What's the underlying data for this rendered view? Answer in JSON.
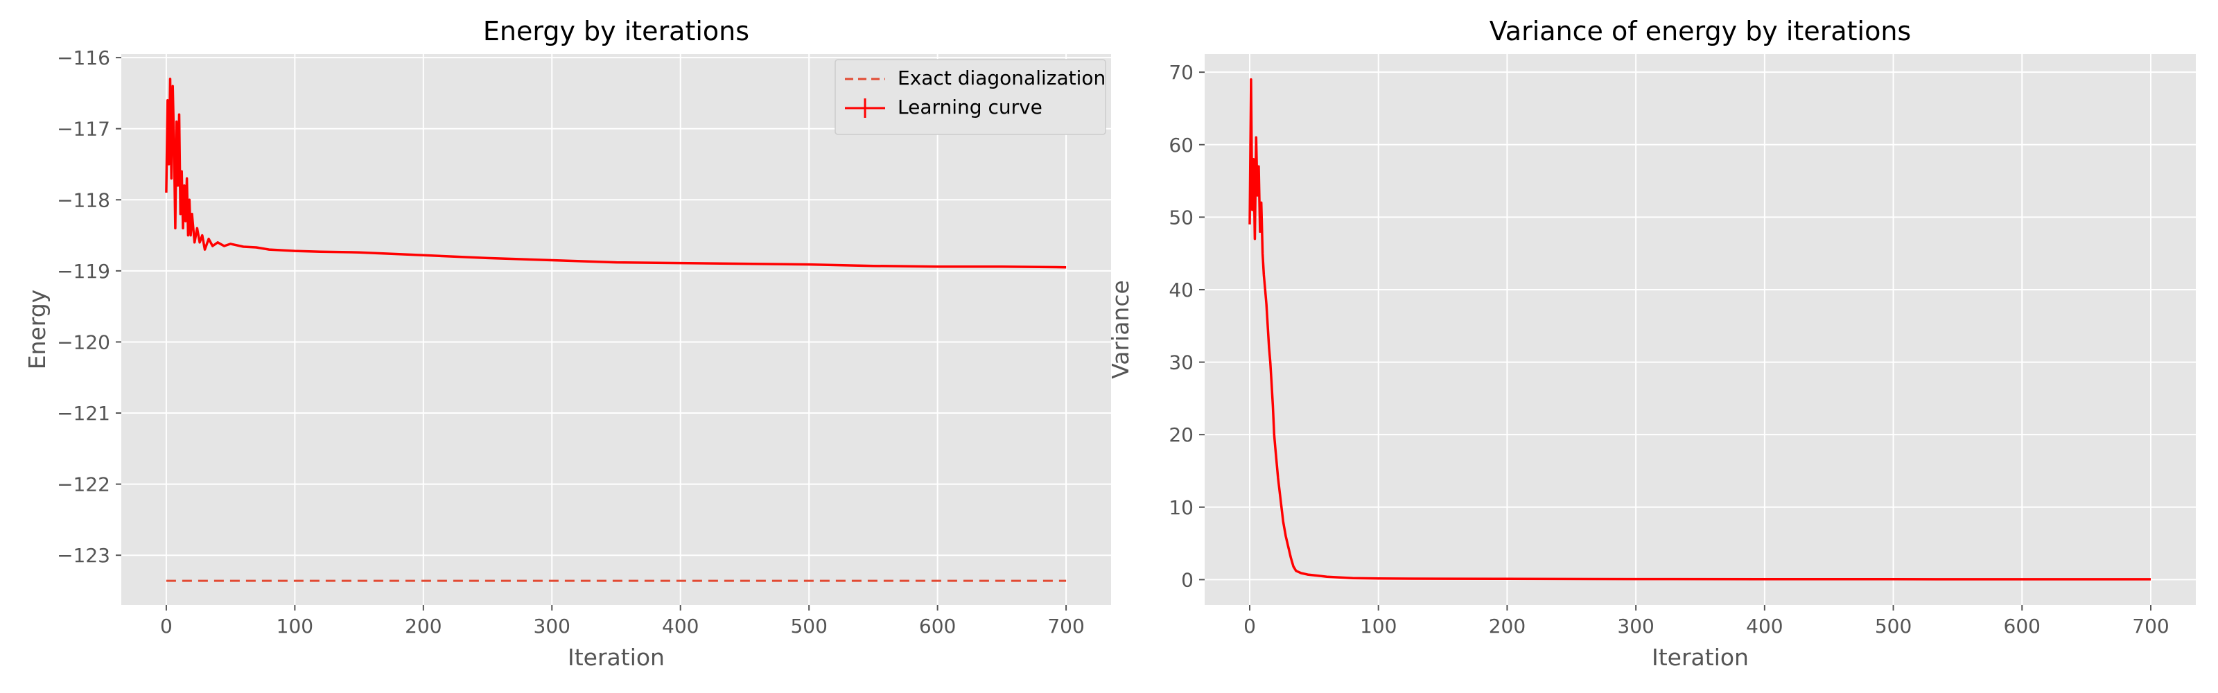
{
  "chart_data": [
    {
      "type": "line",
      "title": "Energy by iterations",
      "xlabel": "Iteration",
      "ylabel": "Energy",
      "xlim": [
        -35,
        735
      ],
      "ylim": [
        -123.7,
        -115.95
      ],
      "xticks": [
        0,
        100,
        200,
        300,
        400,
        500,
        600,
        700
      ],
      "yticks": [
        -116,
        -117,
        -118,
        -119,
        -120,
        -121,
        -122,
        -123
      ],
      "ytick_labels": [
        "−116",
        "−117",
        "−118",
        "−119",
        "−120",
        "−121",
        "−122",
        "−123"
      ],
      "grid": true,
      "legend": "top-right",
      "series": [
        {
          "name": "Exact diagonalization",
          "color": "#e24a33",
          "style": "dashed",
          "x": [
            0,
            700
          ],
          "y": [
            -123.36,
            -123.36
          ]
        },
        {
          "name": "Learning curve",
          "color": "#ff0000",
          "style": "solid-errorbar",
          "x": [
            0,
            1,
            2,
            3,
            4,
            5,
            6,
            7,
            8,
            9,
            10,
            11,
            12,
            13,
            14,
            15,
            16,
            17,
            18,
            19,
            20,
            22,
            24,
            26,
            28,
            30,
            33,
            36,
            40,
            45,
            50,
            60,
            70,
            80,
            100,
            120,
            150,
            200,
            250,
            300,
            350,
            400,
            450,
            500,
            550,
            600,
            650,
            700
          ],
          "y": [
            -117.9,
            -116.6,
            -117.5,
            -116.3,
            -117.7,
            -116.4,
            -117.2,
            -118.4,
            -116.9,
            -117.8,
            -116.8,
            -118.2,
            -117.6,
            -118.4,
            -117.8,
            -118.3,
            -117.7,
            -118.5,
            -118.0,
            -118.5,
            -118.2,
            -118.6,
            -118.4,
            -118.6,
            -118.5,
            -118.7,
            -118.55,
            -118.65,
            -118.6,
            -118.65,
            -118.62,
            -118.66,
            -118.67,
            -118.7,
            -118.72,
            -118.73,
            -118.74,
            -118.78,
            -118.82,
            -118.85,
            -118.88,
            -118.89,
            -118.9,
            -118.91,
            -118.93,
            -118.94,
            -118.94,
            -118.95
          ]
        }
      ]
    },
    {
      "type": "line",
      "title": "Variance of energy by iterations",
      "xlabel": "Iteration",
      "ylabel": "Variance",
      "xlim": [
        -35,
        735
      ],
      "ylim": [
        -3.5,
        72.5
      ],
      "xticks": [
        0,
        100,
        200,
        300,
        400,
        500,
        600,
        700
      ],
      "yticks": [
        0,
        10,
        20,
        30,
        40,
        50,
        60,
        70
      ],
      "grid": true,
      "series": [
        {
          "color": "#ff0000",
          "style": "solid-errorbar",
          "x": [
            0,
            1,
            2,
            3,
            4,
            5,
            6,
            7,
            8,
            9,
            10,
            11,
            12,
            13,
            14,
            15,
            16,
            17,
            18,
            19,
            20,
            22,
            24,
            26,
            28,
            30,
            32,
            34,
            36,
            40,
            45,
            50,
            60,
            70,
            80,
            100,
            150,
            200,
            300,
            400,
            500,
            600,
            700
          ],
          "y": [
            49,
            69,
            51,
            58,
            47,
            61,
            53,
            57,
            48,
            52,
            45,
            42,
            40,
            38,
            35,
            32,
            30,
            27,
            24,
            20,
            18,
            14,
            11,
            8,
            6,
            4.5,
            3,
            1.8,
            1.2,
            0.9,
            0.7,
            0.6,
            0.4,
            0.3,
            0.2,
            0.15,
            0.12,
            0.1,
            0.08,
            0.07,
            0.06,
            0.05,
            0.05
          ]
        }
      ]
    }
  ]
}
